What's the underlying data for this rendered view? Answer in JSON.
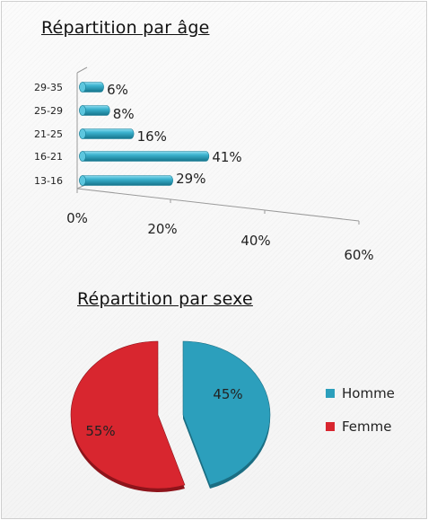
{
  "chart_data": [
    {
      "type": "bar",
      "orientation": "horizontal",
      "title": "Répartition par âge",
      "categories": [
        "13-16",
        "16-21",
        "21-25",
        "25-29",
        "29-35"
      ],
      "values": [
        29,
        41,
        16,
        8,
        6
      ],
      "data_labels": [
        "29%",
        "41%",
        "16%",
        "8%",
        "6%"
      ],
      "xlim": [
        0,
        60
      ],
      "x_ticks": [
        "0%",
        "20%",
        "40%",
        "60%"
      ],
      "color": "#2ba3c0",
      "grid": false,
      "legend": "none"
    },
    {
      "type": "pie",
      "title": "Répartition par sexe",
      "labels": [
        "Homme",
        "Femme"
      ],
      "values": [
        45,
        55
      ],
      "data_labels": [
        "45%",
        "55%"
      ],
      "colors": [
        "#2c9fbc",
        "#d8262f"
      ],
      "legend": "right"
    }
  ]
}
